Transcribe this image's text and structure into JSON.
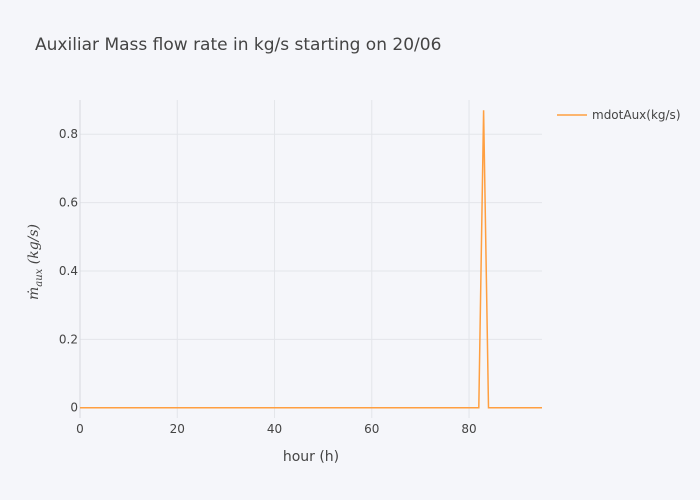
{
  "chart_data": {
    "type": "line",
    "title": "Auxiliar Mass flow rate in kg/s starting on 20/06",
    "xlabel": "hour (h)",
    "ylabel": "ṁ_aux (kg/s)",
    "xlim": [
      0,
      95
    ],
    "ylim": [
      -0.03,
      0.9
    ],
    "grid": true,
    "legend_position": "top-right",
    "x_ticks": [
      0,
      20,
      40,
      60,
      80
    ],
    "x_tick_labels": [
      "0",
      "20",
      "40",
      "60",
      "80"
    ],
    "y_ticks": [
      0,
      0.2,
      0.4,
      0.6,
      0.8
    ],
    "y_tick_labels": [
      "0",
      "0.2",
      "0.4",
      "0.6",
      "0.8"
    ],
    "series": [
      {
        "name": "mdotAux(kg/s)",
        "color": "#ff9f40",
        "x": [
          0,
          82,
          83,
          84,
          95
        ],
        "y": [
          0,
          0,
          0.87,
          0,
          0
        ]
      }
    ]
  }
}
